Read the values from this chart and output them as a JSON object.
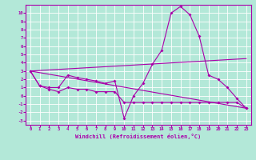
{
  "xlabel": "Windchill (Refroidissement éolien,°C)",
  "background_color": "#b3e8d8",
  "line_color": "#aa00aa",
  "xlim": [
    -0.5,
    23.5
  ],
  "ylim": [
    -3.5,
    11.0
  ],
  "xticks": [
    0,
    1,
    2,
    3,
    4,
    5,
    6,
    7,
    8,
    9,
    10,
    11,
    12,
    13,
    14,
    15,
    16,
    17,
    18,
    19,
    20,
    21,
    22,
    23
  ],
  "yticks": [
    -3,
    -2,
    -1,
    0,
    1,
    2,
    3,
    4,
    5,
    6,
    7,
    8,
    9,
    10
  ],
  "series1_x": [
    0,
    1,
    2,
    3,
    4,
    5,
    6,
    7,
    8,
    9,
    10,
    11,
    12,
    13,
    14,
    15,
    16,
    17,
    18,
    19,
    20,
    21,
    22,
    23
  ],
  "series1_y": [
    3.0,
    1.2,
    1.0,
    1.0,
    2.5,
    2.2,
    2.0,
    1.8,
    1.5,
    1.8,
    -2.7,
    0.0,
    1.5,
    3.8,
    5.5,
    10.0,
    10.8,
    9.8,
    7.2,
    2.5,
    2.0,
    1.0,
    -0.3,
    -1.5
  ],
  "series2_x": [
    0,
    1,
    2,
    3,
    4,
    5,
    6,
    7,
    8,
    9,
    10,
    11,
    12,
    13,
    14,
    15,
    16,
    17,
    18,
    19,
    20,
    21,
    22,
    23
  ],
  "series2_y": [
    3.0,
    1.2,
    0.8,
    0.5,
    1.0,
    0.8,
    0.8,
    0.5,
    0.5,
    0.5,
    -0.8,
    -0.8,
    -0.8,
    -0.8,
    -0.8,
    -0.8,
    -0.8,
    -0.8,
    -0.8,
    -0.8,
    -0.8,
    -0.8,
    -0.8,
    -1.5
  ],
  "series3_x": [
    0,
    23
  ],
  "series3_y": [
    3.0,
    4.5
  ],
  "series4_x": [
    0,
    23
  ],
  "series4_y": [
    3.0,
    -1.5
  ]
}
